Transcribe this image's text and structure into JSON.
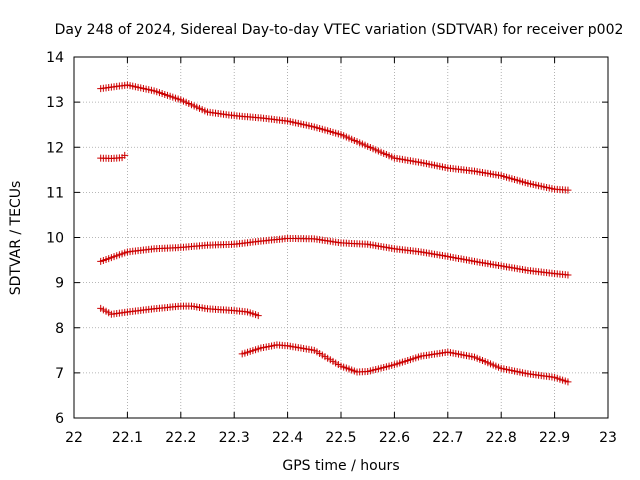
{
  "chart_data": {
    "type": "scatter",
    "title": "Day 248 of 2024, Sidereal Day-to-day VTEC variation (SDTVAR) for receiver p002",
    "xlabel": "GPS time / hours",
    "ylabel": "SDTVAR / TECUs",
    "xlim": [
      22,
      23
    ],
    "ylim": [
      6,
      14
    ],
    "x_ticks": [
      "22",
      "22.1",
      "22.2",
      "22.3",
      "22.4",
      "22.5",
      "22.6",
      "22.7",
      "22.8",
      "22.9",
      "23"
    ],
    "y_ticks": [
      "6",
      "7",
      "8",
      "9",
      "10",
      "11",
      "12",
      "13",
      "14"
    ],
    "grid": true,
    "marker": "+",
    "marker_color": "#cc0000",
    "series": [
      {
        "name": "track-1",
        "points": [
          [
            22.05,
            13.3
          ],
          [
            22.1,
            13.38
          ],
          [
            22.15,
            13.25
          ],
          [
            22.2,
            13.05
          ],
          [
            22.25,
            12.78
          ],
          [
            22.3,
            12.7
          ],
          [
            22.35,
            12.65
          ],
          [
            22.4,
            12.58
          ],
          [
            22.45,
            12.45
          ],
          [
            22.5,
            12.28
          ],
          [
            22.55,
            12.02
          ],
          [
            22.6,
            11.76
          ],
          [
            22.65,
            11.66
          ],
          [
            22.7,
            11.54
          ],
          [
            22.75,
            11.47
          ],
          [
            22.8,
            11.37
          ],
          [
            22.85,
            11.2
          ],
          [
            22.9,
            11.07
          ],
          [
            22.925,
            11.05
          ]
        ]
      },
      {
        "name": "track-2",
        "points": [
          [
            22.05,
            11.76
          ],
          [
            22.07,
            11.75
          ],
          [
            22.09,
            11.77
          ],
          [
            22.095,
            11.82
          ]
        ]
      },
      {
        "name": "track-3",
        "points": [
          [
            22.05,
            9.47
          ],
          [
            22.1,
            9.68
          ],
          [
            22.15,
            9.75
          ],
          [
            22.2,
            9.78
          ],
          [
            22.25,
            9.83
          ],
          [
            22.3,
            9.85
          ],
          [
            22.35,
            9.92
          ],
          [
            22.4,
            9.98
          ],
          [
            22.45,
            9.97
          ],
          [
            22.5,
            9.88
          ],
          [
            22.55,
            9.85
          ],
          [
            22.6,
            9.75
          ],
          [
            22.65,
            9.68
          ],
          [
            22.7,
            9.58
          ],
          [
            22.75,
            9.47
          ],
          [
            22.8,
            9.37
          ],
          [
            22.85,
            9.27
          ],
          [
            22.9,
            9.2
          ],
          [
            22.925,
            9.17
          ]
        ]
      },
      {
        "name": "track-4",
        "points": [
          [
            22.05,
            8.43
          ],
          [
            22.07,
            8.3
          ],
          [
            22.1,
            8.35
          ],
          [
            22.15,
            8.42
          ],
          [
            22.2,
            8.48
          ],
          [
            22.22,
            8.48
          ],
          [
            22.25,
            8.42
          ],
          [
            22.3,
            8.38
          ],
          [
            22.325,
            8.35
          ],
          [
            22.345,
            8.27
          ]
        ]
      },
      {
        "name": "track-5",
        "points": [
          [
            22.315,
            7.42
          ],
          [
            22.35,
            7.55
          ],
          [
            22.38,
            7.62
          ],
          [
            22.4,
            7.6
          ],
          [
            22.45,
            7.5
          ],
          [
            22.5,
            7.15
          ],
          [
            22.53,
            7.02
          ],
          [
            22.55,
            7.03
          ],
          [
            22.6,
            7.18
          ],
          [
            22.65,
            7.37
          ],
          [
            22.7,
            7.46
          ],
          [
            22.75,
            7.35
          ],
          [
            22.8,
            7.1
          ],
          [
            22.85,
            6.98
          ],
          [
            22.9,
            6.9
          ],
          [
            22.925,
            6.8
          ]
        ]
      }
    ]
  }
}
